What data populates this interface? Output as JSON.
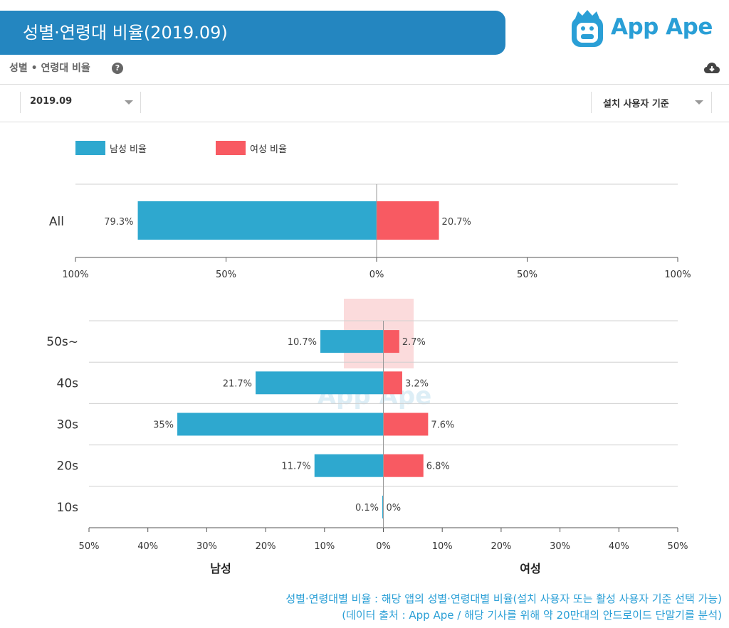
{
  "header": {
    "banner_title": "성별·연령대 비율(2019.09)",
    "logo_text": "App Ape",
    "sub_title": "성별 • 연령대 비율",
    "help_symbol": "?"
  },
  "controls": {
    "period_value": "2019.09",
    "basis_value": "설치 사용자 기준"
  },
  "colors": {
    "male": "#2ea8cf",
    "female": "#f85a62",
    "banner": "#2486c0",
    "accent": "#2a9fd6"
  },
  "chart_data": [
    {
      "type": "bar",
      "orientation": "horizontal-diverging",
      "title": "All",
      "legend": [
        "남성 비율",
        "여성 비율"
      ],
      "categories": [
        "All"
      ],
      "series": [
        {
          "name": "남성 비율",
          "values": [
            79.3
          ],
          "labels": [
            "79.3%"
          ]
        },
        {
          "name": "여성 비율",
          "values": [
            20.7
          ],
          "labels": [
            "20.7%"
          ]
        }
      ],
      "xlim": [
        -100,
        100
      ],
      "ticks": [
        "100%",
        "50%",
        "0%",
        "50%",
        "100%"
      ]
    },
    {
      "type": "bar",
      "orientation": "horizontal-diverging",
      "categories": [
        "50s~",
        "40s",
        "30s",
        "20s",
        "10s"
      ],
      "series": [
        {
          "name": "남성",
          "values": [
            10.7,
            21.7,
            35,
            11.7,
            0.1
          ],
          "labels": [
            "10.7%",
            "21.7%",
            "35%",
            "11.7%",
            "0.1%"
          ]
        },
        {
          "name": "여성",
          "values": [
            2.7,
            3.2,
            7.6,
            6.8,
            0
          ],
          "labels": [
            "2.7%",
            "3.2%",
            "7.6%",
            "6.8%",
            "0%"
          ]
        }
      ],
      "xlim": [
        -50,
        50
      ],
      "ticks": [
        "50%",
        "40%",
        "30%",
        "20%",
        "10%",
        "0%",
        "10%",
        "20%",
        "30%",
        "40%",
        "50%"
      ],
      "xlabel_left": "남성",
      "xlabel_right": "여성"
    }
  ],
  "watermark_text": "App Ape",
  "footer": {
    "line1": "성별·연령대별 비율 : 해당 앱의 성별·연령대별 비율(설치 사용자 또는 활성 사용자 기준 선택 가능)",
    "line2": "(데이터 출처 : App Ape / 해당 기사를 위해 약 20만대의 안드로이드 단말기를 분석)"
  }
}
